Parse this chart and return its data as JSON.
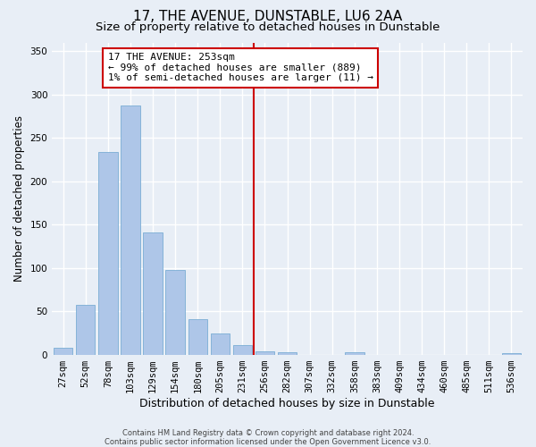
{
  "title": "17, THE AVENUE, DUNSTABLE, LU6 2AA",
  "subtitle": "Size of property relative to detached houses in Dunstable",
  "xlabel": "Distribution of detached houses by size in Dunstable",
  "ylabel": "Number of detached properties",
  "categories": [
    "27sqm",
    "52sqm",
    "78sqm",
    "103sqm",
    "129sqm",
    "154sqm",
    "180sqm",
    "205sqm",
    "231sqm",
    "256sqm",
    "282sqm",
    "307sqm",
    "332sqm",
    "358sqm",
    "383sqm",
    "409sqm",
    "434sqm",
    "460sqm",
    "485sqm",
    "511sqm",
    "536sqm"
  ],
  "values": [
    8,
    57,
    234,
    287,
    141,
    98,
    41,
    24,
    11,
    4,
    3,
    0,
    0,
    3,
    0,
    0,
    0,
    0,
    0,
    0,
    2
  ],
  "bar_color": "#aec6e8",
  "bar_edge_color": "#7aadd4",
  "background_color": "#e8eef6",
  "grid_color": "#ffffff",
  "vline_x": 8.5,
  "vline_color": "#cc0000",
  "annotation_text": "17 THE AVENUE: 253sqm\n← 99% of detached houses are smaller (889)\n1% of semi-detached houses are larger (11) →",
  "annotation_box_color": "#ffffff",
  "annotation_box_edgecolor": "#cc0000",
  "ylim": [
    0,
    360
  ],
  "yticks": [
    0,
    50,
    100,
    150,
    200,
    250,
    300,
    350
  ],
  "footer_line1": "Contains HM Land Registry data © Crown copyright and database right 2024.",
  "footer_line2": "Contains public sector information licensed under the Open Government Licence v3.0.",
  "title_fontsize": 11,
  "subtitle_fontsize": 9.5,
  "xlabel_fontsize": 9,
  "ylabel_fontsize": 8.5,
  "tick_fontsize": 7.5,
  "annotation_fontsize": 8,
  "footer_fontsize": 6
}
